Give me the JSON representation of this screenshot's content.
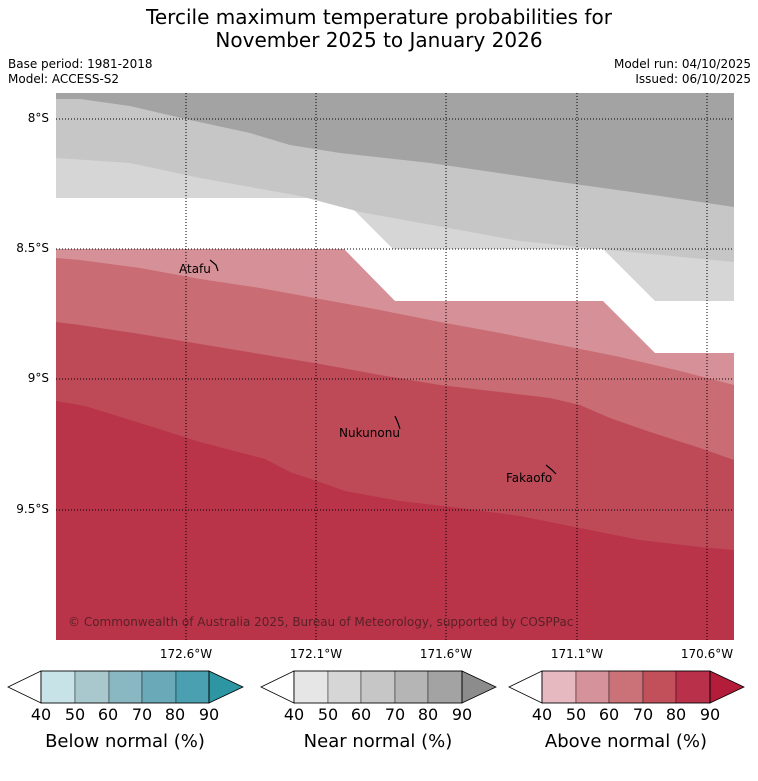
{
  "header": {
    "title_line1": "Tercile maximum temperature probabilities for",
    "title_line2": "November 2025 to January 2026",
    "base_period": "Base period: 1981-2018",
    "model": "Model: ACCESS-S2",
    "model_run": "Model run: 04/10/2025",
    "issued": "Issued: 06/10/2025"
  },
  "map": {
    "lat_labels": [
      "8°S",
      "8.5°S",
      "9°S",
      "9.5°S"
    ],
    "lon_labels": [
      "172.6°W",
      "172.1°W",
      "171.6°W",
      "171.1°W",
      "170.6°W"
    ],
    "places": [
      {
        "name": "Atafu"
      },
      {
        "name": "Nukunonu"
      },
      {
        "name": "Fakaofo"
      }
    ],
    "copyright": "© Commonwealth of Australia 2025, Bureau of Meteorology, supported by COSPPac"
  },
  "colorbars": [
    {
      "label": "Below normal (%)",
      "ticks": [
        "40",
        "50",
        "60",
        "70",
        "80",
        "90"
      ],
      "colors": [
        "#c7e3e8",
        "#a9c8cd",
        "#8ab8c2",
        "#6aa9b7",
        "#4aa0b0",
        "#2e96a3"
      ]
    },
    {
      "label": "Near normal (%)",
      "ticks": [
        "40",
        "50",
        "60",
        "70",
        "80",
        "90"
      ],
      "colors": [
        "#e6e6e6",
        "#d6d6d6",
        "#c6c6c6",
        "#b5b5b5",
        "#a3a3a3",
        "#8c8c8c"
      ]
    },
    {
      "label": "Above normal (%)",
      "ticks": [
        "40",
        "50",
        "60",
        "70",
        "80",
        "90"
      ],
      "colors": [
        "#e6b8bf",
        "#d6929a",
        "#ca7278",
        "#c1505b",
        "#b8304a",
        "#b31d3a"
      ]
    }
  ],
  "colors": {
    "near_normal_40": "#d6d6d6",
    "near_normal_50": "#c6c6c6",
    "near_normal_60": "#a3a3a3",
    "above_normal_50": "#d69097",
    "above_normal_60": "#c96c74",
    "above_normal_70": "#be4a57",
    "above_normal_80": "#ba3449"
  }
}
